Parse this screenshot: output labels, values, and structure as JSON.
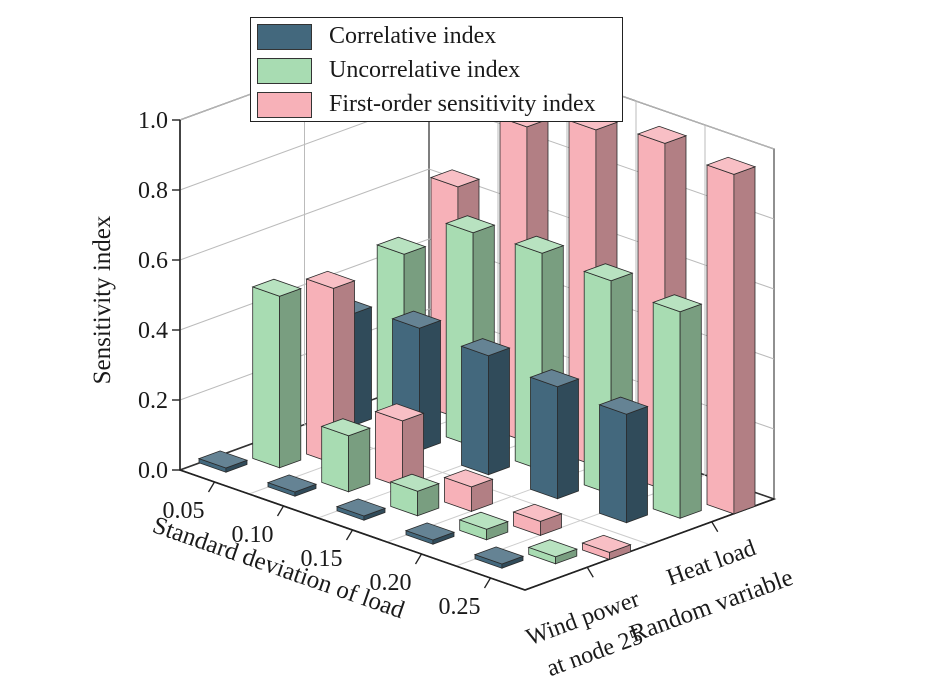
{
  "chart_data": {
    "type": "bar3d",
    "ylabel": "Sensitivity index",
    "xlabel": "Standard deviation of load",
    "zlabel": "Random variable",
    "ylim": [
      0,
      1.0
    ],
    "y_ticks": [
      "0.0",
      "0.2",
      "0.4",
      "0.6",
      "0.8",
      "1.0"
    ],
    "x_categories": [
      "0.05",
      "0.10",
      "0.15",
      "0.20",
      "0.25"
    ],
    "z_categories": [
      {
        "line1": "Wind power",
        "line2": "at node 25"
      },
      {
        "line1": "Heat load",
        "line2": ""
      }
    ],
    "series": [
      {
        "name": "Correlative index",
        "color": "#43687d",
        "wind_power": [
          0.0,
          0.0,
          0.0,
          0.0,
          0.0
        ],
        "heat_load": [
          0.32,
          0.35,
          0.34,
          0.32,
          0.31
        ]
      },
      {
        "name": "Uncorrelative index",
        "color": "#a8dcb2",
        "wind_power": [
          0.49,
          0.16,
          0.07,
          0.03,
          0.02
        ],
        "heat_load": [
          0.48,
          0.61,
          0.62,
          0.61,
          0.59
        ]
      },
      {
        "name": "First-order sensitivity index",
        "color": "#f7b1b8",
        "wind_power": [
          0.5,
          0.19,
          0.07,
          0.04,
          0.02
        ],
        "heat_load": [
          0.66,
          0.9,
          0.96,
          0.99,
          0.97
        ]
      }
    ]
  }
}
